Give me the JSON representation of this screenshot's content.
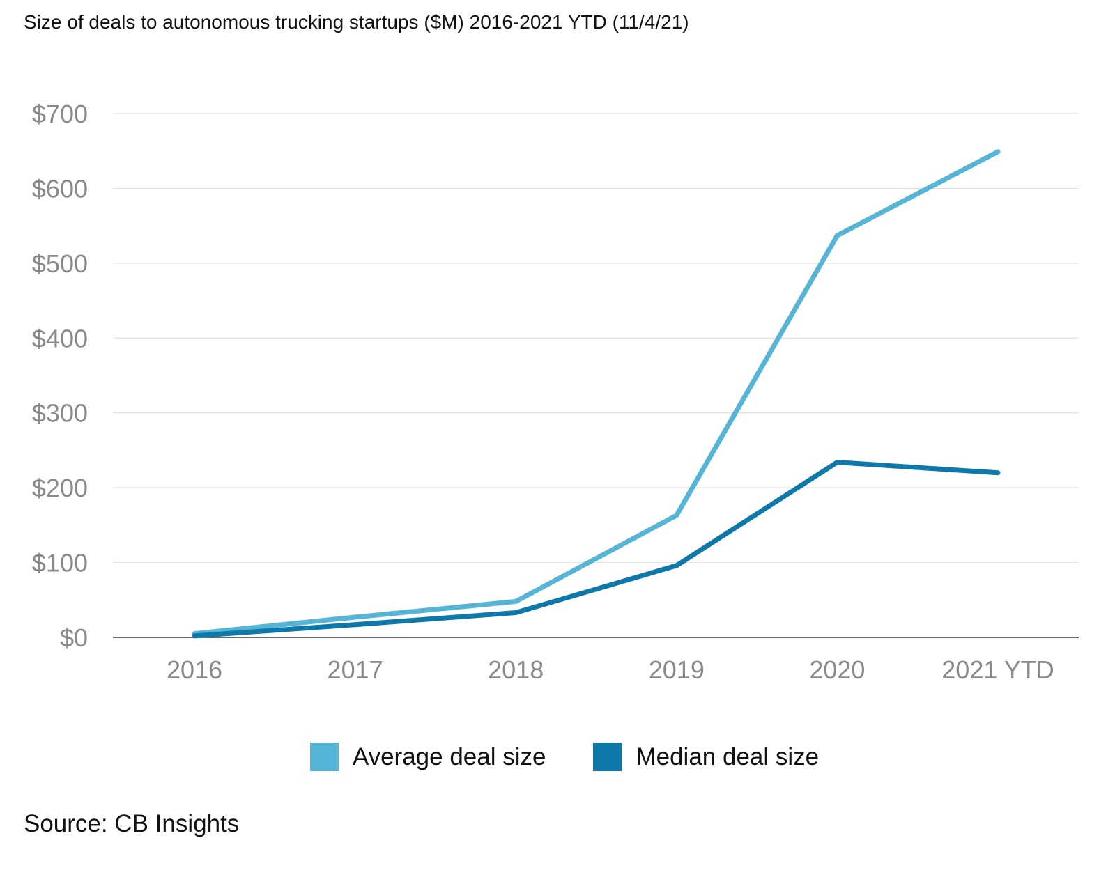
{
  "chart_data": {
    "type": "line",
    "title": "Size of deals to autonomous trucking startups ($M) 2016-2021 YTD (11/4/21)",
    "xlabel": "",
    "ylabel": "",
    "categories": [
      "2016",
      "2017",
      "2018",
      "2019",
      "2020",
      "2021 YTD"
    ],
    "y_ticks": [
      "$0",
      "$100",
      "$200",
      "$300",
      "$400",
      "$500",
      "$600",
      "$700"
    ],
    "ylim": [
      0,
      700
    ],
    "grid": true,
    "legend_position": "bottom",
    "series": [
      {
        "name": "Average deal size",
        "color": "#56b4d6",
        "values": [
          5,
          27,
          48,
          163,
          537,
          649
        ]
      },
      {
        "name": "Median deal size",
        "color": "#0f78ab",
        "values": [
          2,
          17,
          33,
          96,
          234,
          220
        ]
      }
    ],
    "source": "Source: CB Insights"
  }
}
